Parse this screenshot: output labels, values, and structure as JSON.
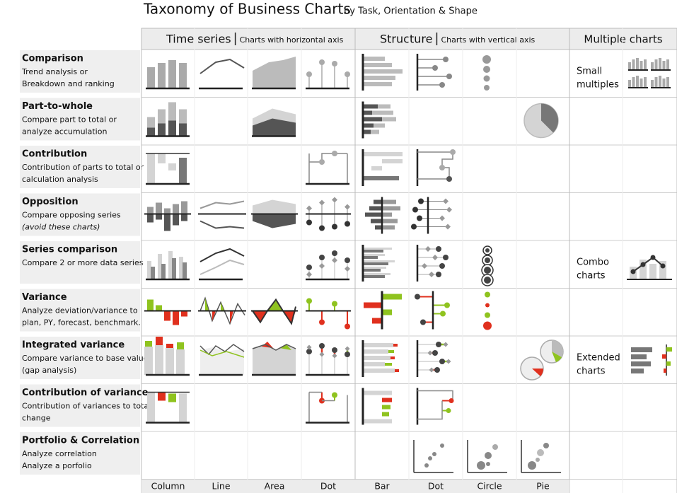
{
  "title": "Taxonomy of Business Charts",
  "subtitle": "by Task, Orientation & Shape",
  "sections": [
    {
      "name": "Time series",
      "note": "Charts with horizontal axis"
    },
    {
      "name": "Structure",
      "note": "Charts with vertical axis"
    },
    {
      "name": "Multiple charts"
    }
  ],
  "rows": [
    {
      "title": "Comparison",
      "lines": [
        "Trend analysis or",
        "Breakdown and ranking"
      ],
      "multiple": [
        "Small",
        "multiples"
      ]
    },
    {
      "title": "Part-to-whole",
      "lines": [
        "Compare part to total or",
        "analyze accumulation"
      ]
    },
    {
      "title": "Contribution",
      "lines": [
        "Contribution of parts to total or",
        "calculation analysis"
      ]
    },
    {
      "title": "Opposition",
      "lines": [
        "Compare opposing series"
      ],
      "note": "(avoid these charts)"
    },
    {
      "title": "Series comparison",
      "lines": [
        "Compare 2 or more data series"
      ],
      "multiple": [
        "Combo",
        "charts"
      ]
    },
    {
      "title": "Variance",
      "lines": [
        "Analyze deviation/variance to",
        "plan, PY, forecast, benchmark."
      ]
    },
    {
      "title": "Integrated variance",
      "lines": [
        "Compare variance to base value",
        "(gap analysis)"
      ],
      "multiple": [
        "Extended",
        "charts"
      ]
    },
    {
      "title": "Contribution of variance",
      "lines": [
        "Contribution of variances to total",
        "change"
      ]
    },
    {
      "title": "Portfolio & Correlation",
      "lines": [
        "Analyze correlation",
        "Analyze a porfolio"
      ]
    }
  ],
  "columns": [
    "Column",
    "Line",
    "Area",
    "Dot",
    "Bar",
    "Dot",
    "Circle",
    "Pie"
  ]
}
